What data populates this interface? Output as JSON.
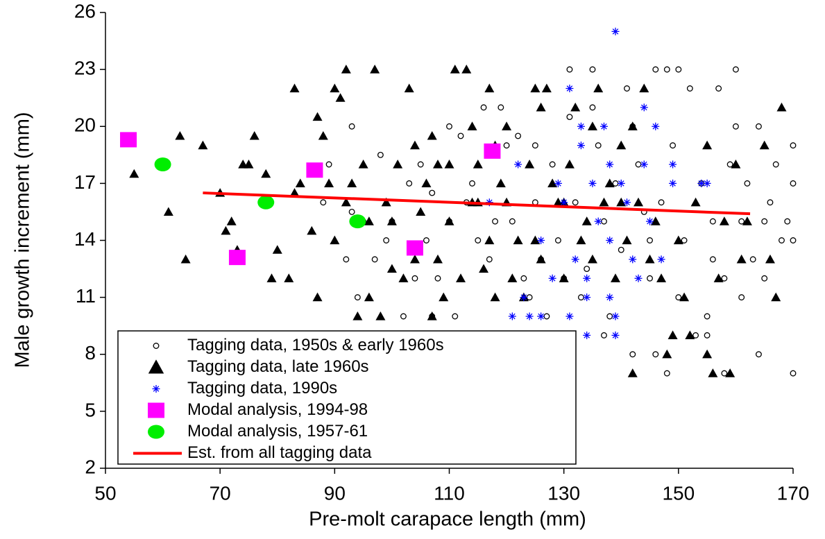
{
  "chart_data": {
    "type": "scatter",
    "x_label": "Pre-molt carapace length (mm)",
    "y_label": "Male growth increment (mm)",
    "xlim": [
      50,
      170
    ],
    "xticks": [
      50,
      70,
      90,
      110,
      130,
      150,
      170
    ],
    "ylim": [
      2,
      26
    ],
    "yticks": [
      2,
      5,
      8,
      11,
      14,
      17,
      20,
      23,
      26
    ],
    "legend": "lower left",
    "series": [
      {
        "name": "Tagging data, 1950s & early 1960s",
        "color": "#000000",
        "marker": "open-circle",
        "x": [
          88,
          89,
          92,
          93,
          93,
          94,
          95,
          97,
          98,
          100,
          102,
          104,
          105,
          106,
          107,
          107,
          108,
          110,
          110,
          111,
          112,
          114,
          115,
          116,
          117,
          119,
          120,
          121,
          122,
          123,
          125,
          126,
          127,
          128,
          129,
          130,
          131,
          131,
          132,
          133,
          134,
          135,
          136,
          137,
          138,
          139,
          140,
          141,
          142,
          143,
          144,
          145,
          146,
          146,
          147,
          148,
          148,
          149,
          150,
          151,
          152,
          153,
          154,
          155,
          156,
          157,
          158,
          158,
          159,
          160,
          160,
          161,
          162,
          163,
          164,
          164,
          165,
          166,
          167,
          168,
          169,
          170,
          170,
          170,
          170,
          165,
          161,
          155,
          150,
          145,
          135,
          125,
          118,
          113,
          103,
          99,
          124,
          137,
          142,
          156
        ],
        "values": [
          16,
          18,
          13,
          15.5,
          20,
          11,
          15,
          13,
          18.5,
          15,
          10,
          12,
          18,
          14,
          10,
          16.5,
          12,
          20,
          15,
          10,
          19.5,
          17,
          14,
          21,
          13,
          21,
          19,
          15,
          19.5,
          12,
          16,
          13,
          10,
          18,
          14,
          12,
          20.5,
          23,
          16,
          11,
          12.5,
          23,
          19,
          15,
          10,
          17,
          13.5,
          22,
          20,
          18,
          15.5,
          12,
          8,
          23,
          16,
          7,
          23,
          19,
          23,
          14,
          22,
          9,
          17,
          10,
          15,
          22,
          7,
          12,
          18,
          23,
          20,
          15,
          17,
          13,
          8,
          20,
          15,
          16,
          18,
          14,
          15,
          19,
          17,
          14,
          7,
          12,
          11,
          9,
          11,
          14,
          21,
          19,
          15,
          16,
          17,
          14,
          11,
          9,
          8,
          13
        ]
      },
      {
        "name": "Tagging data, late 1960s",
        "color": "#000000",
        "marker": "triangle",
        "x": [
          55,
          61,
          63,
          64,
          67,
          70,
          71,
          72,
          73,
          74,
          75,
          76,
          78,
          79,
          80,
          82,
          83,
          83,
          84,
          86,
          87,
          87,
          88,
          89,
          90,
          90,
          91,
          92,
          93,
          94,
          95,
          96,
          97,
          98,
          99,
          100,
          101,
          102,
          103,
          104,
          105,
          106,
          107,
          107,
          108,
          109,
          110,
          111,
          112,
          113,
          114,
          114,
          115,
          116,
          117,
          117,
          118,
          119,
          120,
          121,
          122,
          123,
          124,
          125,
          126,
          127,
          128,
          129,
          130,
          131,
          132,
          133,
          134,
          135,
          136,
          137,
          138,
          139,
          140,
          141,
          142,
          142,
          143,
          144,
          145,
          146,
          147,
          148,
          149,
          150,
          151,
          152,
          153,
          155,
          155,
          156,
          157,
          158,
          159,
          160,
          161,
          162,
          165,
          166,
          167,
          168,
          126,
          110,
          100,
          120,
          130,
          140,
          135,
          115,
          125,
          108,
          118,
          96,
          104,
          92
        ],
        "values": [
          17.5,
          15.5,
          19.5,
          13,
          19,
          16.5,
          14.5,
          15,
          13.5,
          18,
          18,
          19.5,
          17.5,
          12,
          13.5,
          12,
          22,
          16.5,
          17,
          14.5,
          11,
          20.5,
          19.5,
          17,
          14,
          22,
          21.5,
          23,
          17,
          10,
          18,
          15,
          23,
          10,
          16,
          12.5,
          18,
          12,
          22,
          19,
          15.5,
          17,
          10,
          19.5,
          13,
          11,
          15,
          23,
          12,
          23,
          16,
          20,
          18,
          12.5,
          14,
          22,
          11,
          17,
          20,
          12,
          14,
          11,
          18,
          22,
          13,
          22,
          17,
          16,
          12,
          18,
          21,
          14,
          15,
          13,
          22,
          16,
          17,
          12,
          19,
          14,
          7,
          20,
          16,
          22,
          13,
          15,
          12,
          8,
          9,
          14,
          11,
          9,
          16,
          8,
          19,
          7,
          12,
          15,
          7,
          18,
          13,
          15,
          19,
          13,
          11,
          21,
          21,
          18,
          15,
          16,
          16,
          16,
          20,
          16,
          14,
          18,
          19,
          11,
          13,
          16
        ]
      },
      {
        "name": "Tagging data, 1990s",
        "color": "#0000ff",
        "marker": "asterisk",
        "x": [
          117,
          121,
          122,
          123,
          124,
          126,
          126,
          128,
          129,
          130,
          131,
          131,
          132,
          133,
          134,
          134,
          135,
          136,
          137,
          138,
          138,
          139,
          139,
          139,
          140,
          141,
          142,
          143,
          144,
          145,
          146,
          147,
          149,
          149,
          154,
          155,
          133,
          138,
          134,
          144
        ],
        "values": [
          16,
          10,
          18,
          11,
          10,
          10,
          14,
          12,
          17,
          16,
          22,
          10,
          13,
          19,
          9,
          11,
          17,
          15,
          20,
          14,
          18,
          25,
          9,
          10,
          17,
          16,
          13,
          12,
          21,
          15,
          20,
          13,
          18,
          17,
          17,
          17,
          20,
          11,
          12,
          18
        ]
      },
      {
        "name": "Modal analysis, 1994-98",
        "color": "#ff00ff",
        "marker": "square",
        "x": [
          54,
          73,
          86.5,
          104,
          117.5
        ],
        "values": [
          19.3,
          13.1,
          17.7,
          13.6,
          18.7
        ]
      },
      {
        "name": "Modal analysis, 1957-61",
        "color": "#00ee00",
        "marker": "filled-circle",
        "x": [
          60,
          78,
          94
        ],
        "values": [
          18,
          16,
          15
        ]
      },
      {
        "name": "Est. from all tagging data",
        "color": "#ff0000",
        "marker": "line",
        "x": [
          67,
          162.5
        ],
        "values": [
          16.5,
          15.4
        ]
      }
    ]
  }
}
